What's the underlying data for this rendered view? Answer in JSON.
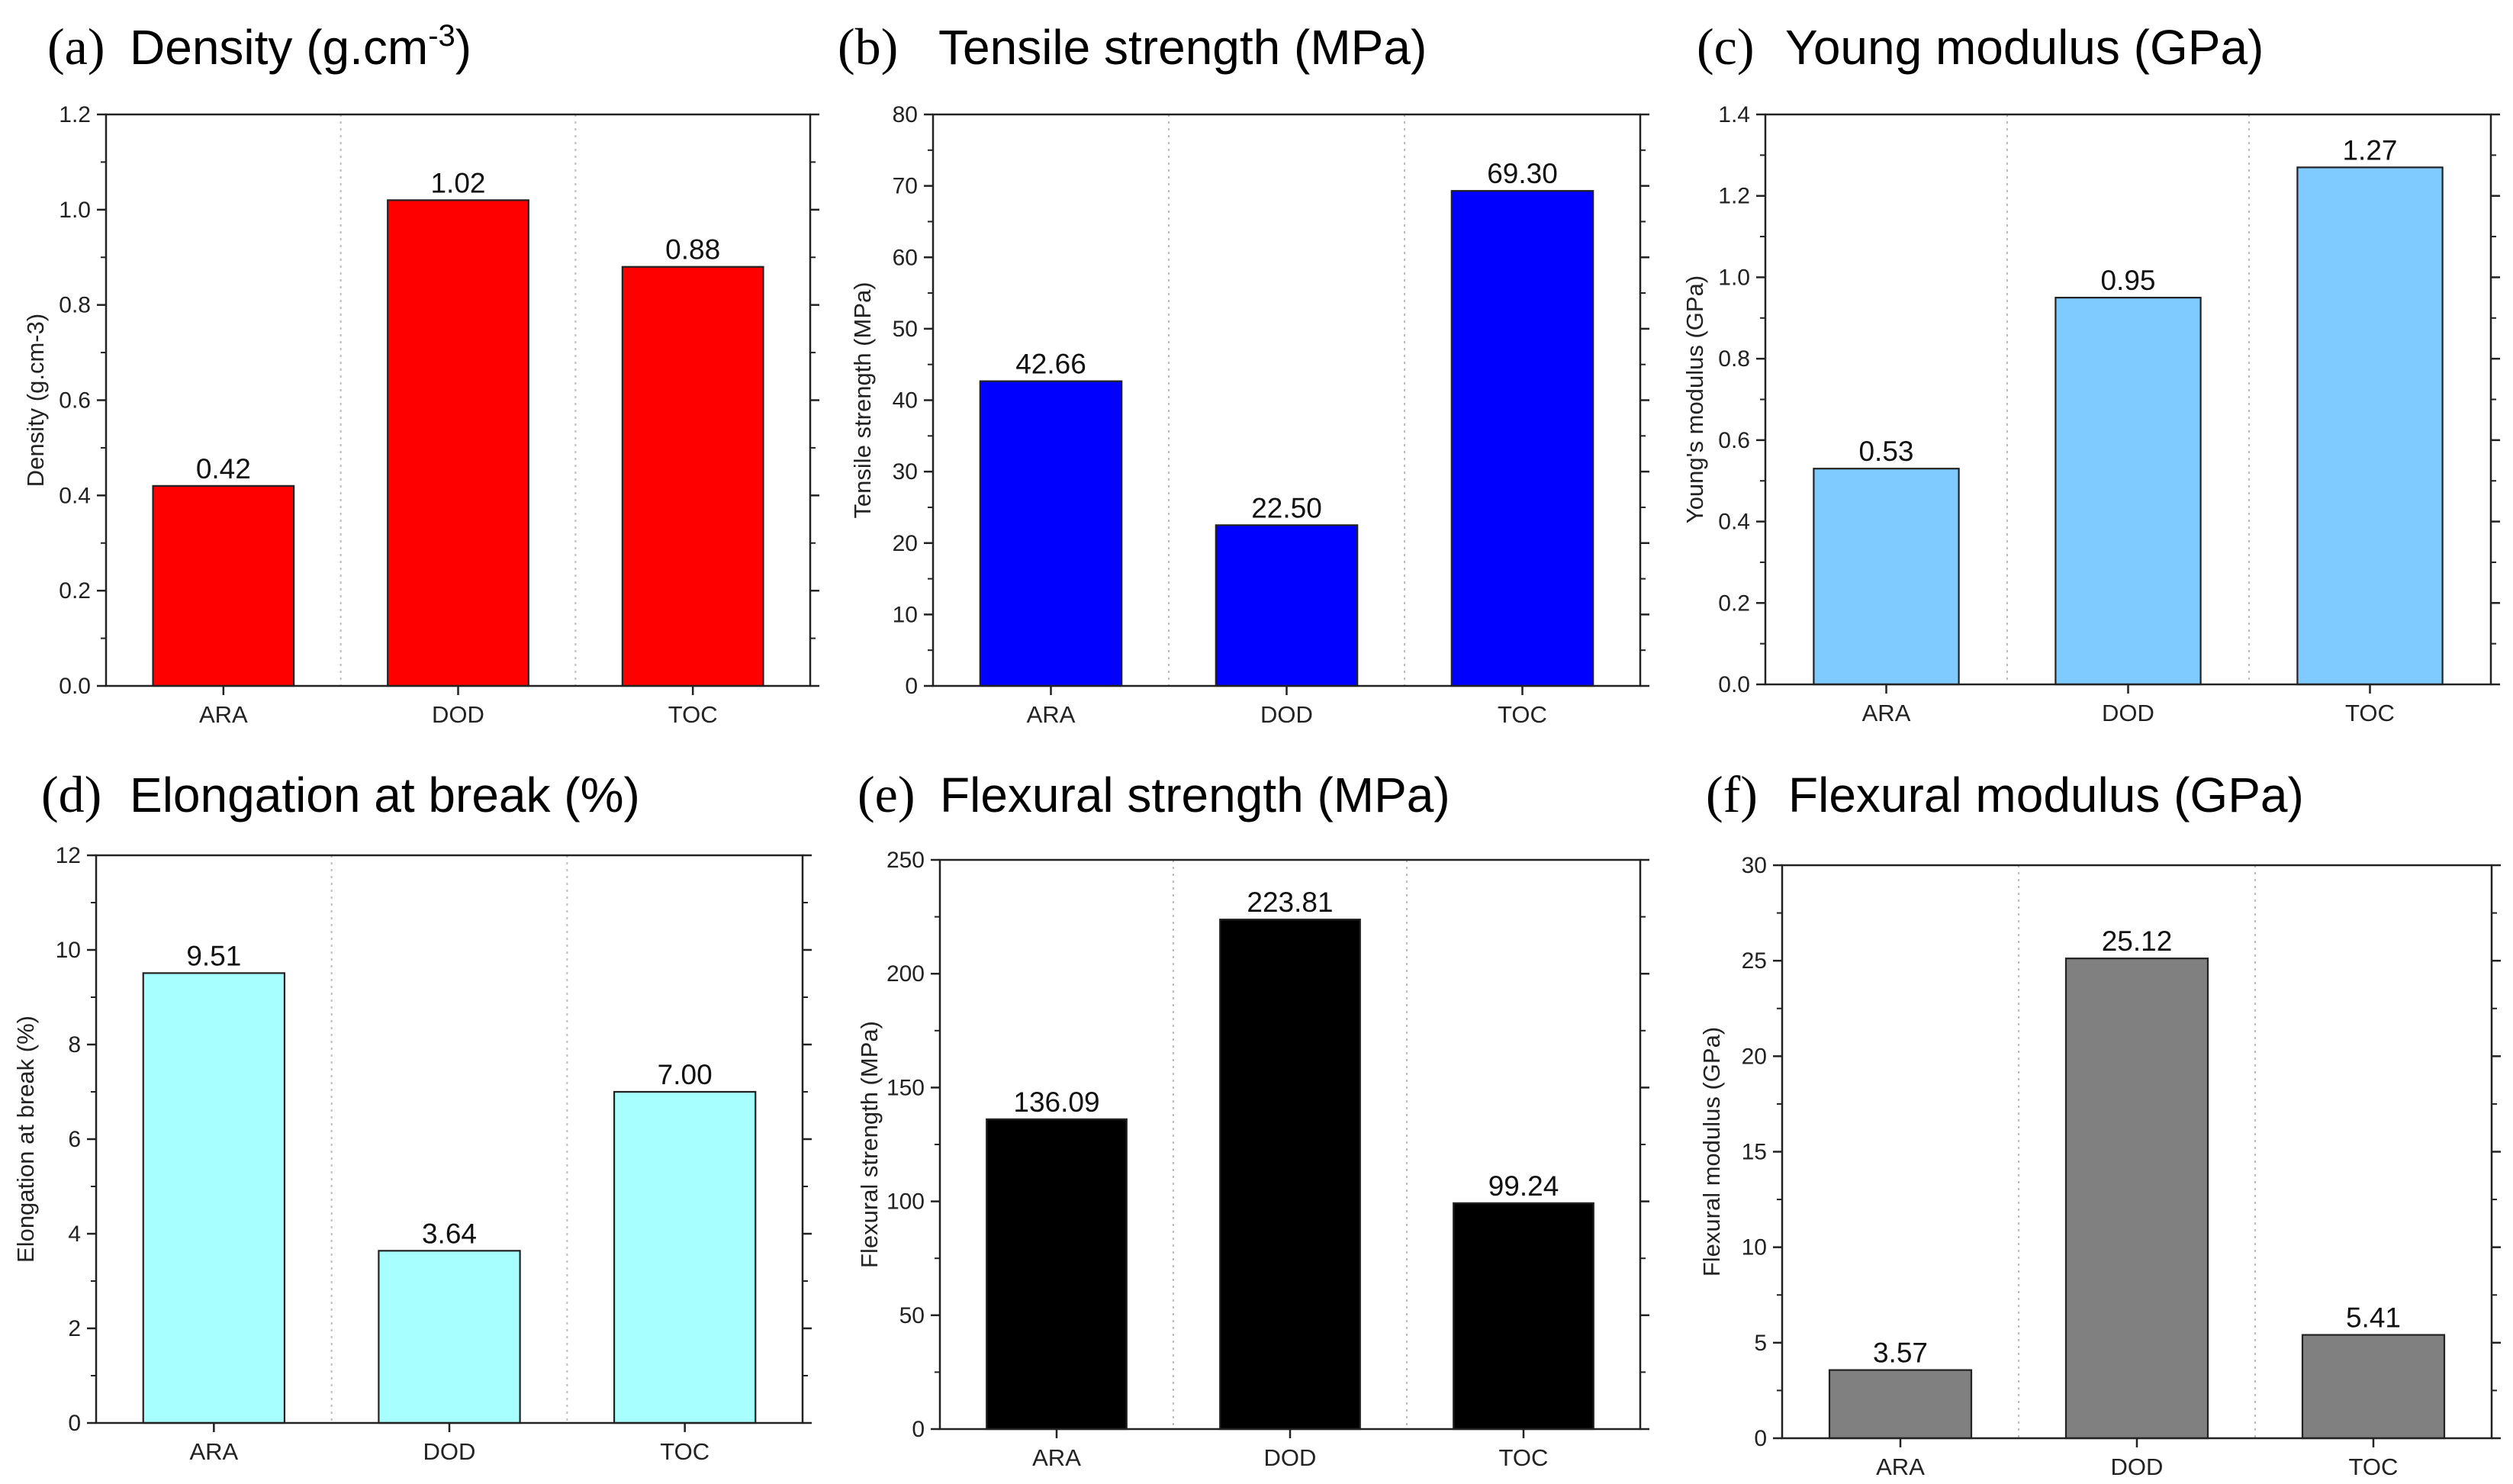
{
  "figure": {
    "description_panels": 6
  },
  "chart_data": [
    {
      "type": "bar",
      "panel_letter": "(a)",
      "title": "Density (g.cm",
      "title_superscript": "-3",
      "title_suffix": ")",
      "xlabel": "",
      "ylabel": "Density (g.cm-3)",
      "categories": [
        "ARA",
        "DOD",
        "TOC"
      ],
      "values": [
        0.42,
        1.02,
        0.88
      ],
      "value_labels": [
        "0.42",
        "1.02",
        "0.88"
      ],
      "ylim": [
        0,
        1.2
      ],
      "yticks": [
        0.0,
        0.2,
        0.4,
        0.6,
        0.8,
        1.0,
        1.2
      ],
      "ytick_labels": [
        "0.0",
        "0.2",
        "0.4",
        "0.6",
        "0.8",
        "1.0",
        "1.2"
      ],
      "bar_color": "#ff0000",
      "grid": "vertical dotted separators",
      "legend": "none"
    },
    {
      "type": "bar",
      "panel_letter": "(b)",
      "title": "Tensile strength (MPa)",
      "title_superscript": "",
      "title_suffix": "",
      "xlabel": "",
      "ylabel": "Tensile strength (MPa)",
      "categories": [
        "ARA",
        "DOD",
        "TOC"
      ],
      "values": [
        42.66,
        22.5,
        69.3
      ],
      "value_labels": [
        "42.66",
        "22.50",
        "69.30"
      ],
      "ylim": [
        0,
        80
      ],
      "yticks": [
        0,
        10,
        20,
        30,
        40,
        50,
        60,
        70,
        80
      ],
      "ytick_labels": [
        "0",
        "10",
        "20",
        "30",
        "40",
        "50",
        "60",
        "70",
        "80"
      ],
      "bar_color": "#0000ff",
      "grid": "vertical dotted separators",
      "legend": "none"
    },
    {
      "type": "bar",
      "panel_letter": "(c)",
      "title": "Young modulus (GPa)",
      "title_superscript": "",
      "title_suffix": "",
      "xlabel": "",
      "ylabel": "Young's modulus (GPa)",
      "categories": [
        "ARA",
        "DOD",
        "TOC"
      ],
      "values": [
        0.53,
        0.95,
        1.27
      ],
      "value_labels": [
        "0.53",
        "0.95",
        "1.27"
      ],
      "ylim": [
        0,
        1.4
      ],
      "yticks": [
        0.0,
        0.2,
        0.4,
        0.6,
        0.8,
        1.0,
        1.2,
        1.4
      ],
      "ytick_labels": [
        "0.0",
        "0.2",
        "0.4",
        "0.6",
        "0.8",
        "1.0",
        "1.2",
        "1.4"
      ],
      "bar_color": "#7fcbff",
      "grid": "vertical dotted separators",
      "legend": "none"
    },
    {
      "type": "bar",
      "panel_letter": "(d)",
      "title": "Elongation at break (%)",
      "title_superscript": "",
      "title_suffix": "",
      "xlabel": "",
      "ylabel": "Elongation at break (%)",
      "categories": [
        "ARA",
        "DOD",
        "TOC"
      ],
      "values": [
        9.51,
        3.64,
        7.0
      ],
      "value_labels": [
        "9.51",
        "3.64",
        "7.00"
      ],
      "ylim": [
        0,
        12
      ],
      "yticks": [
        0,
        2,
        4,
        6,
        8,
        10,
        12
      ],
      "ytick_labels": [
        "0",
        "2",
        "4",
        "6",
        "8",
        "10",
        "12"
      ],
      "bar_color": "#a8ffff",
      "grid": "vertical dotted separators",
      "legend": "none"
    },
    {
      "type": "bar",
      "panel_letter": "(e)",
      "title": "Flexural strength (MPa)",
      "title_superscript": "",
      "title_suffix": "",
      "xlabel": "",
      "ylabel": "Flexural strength (MPa)",
      "categories": [
        "ARA",
        "DOD",
        "TOC"
      ],
      "values": [
        136.09,
        223.81,
        99.24
      ],
      "value_labels": [
        "136.09",
        "223.81",
        "99.24"
      ],
      "ylim": [
        0,
        250
      ],
      "yticks": [
        0,
        50,
        100,
        150,
        200,
        250
      ],
      "ytick_labels": [
        "0",
        "50",
        "100",
        "150",
        "200",
        "250"
      ],
      "bar_color": "#000000",
      "grid": "vertical dotted separators",
      "legend": "none"
    },
    {
      "type": "bar",
      "panel_letter": "(f)",
      "title": "Flexural modulus (GPa)",
      "title_superscript": "",
      "title_suffix": "",
      "xlabel": "",
      "ylabel": "Flexural modulus (GPa)",
      "categories": [
        "ARA",
        "DOD",
        "TOC"
      ],
      "values": [
        3.57,
        25.12,
        5.41
      ],
      "value_labels": [
        "3.57",
        "25.12",
        "5.41"
      ],
      "ylim": [
        0,
        30
      ],
      "yticks": [
        0,
        5,
        10,
        15,
        20,
        25,
        30
      ],
      "ytick_labels": [
        "0",
        "5",
        "10",
        "15",
        "20",
        "25",
        "30"
      ],
      "bar_color": "#808080",
      "grid": "vertical dotted separators",
      "legend": "none"
    }
  ]
}
